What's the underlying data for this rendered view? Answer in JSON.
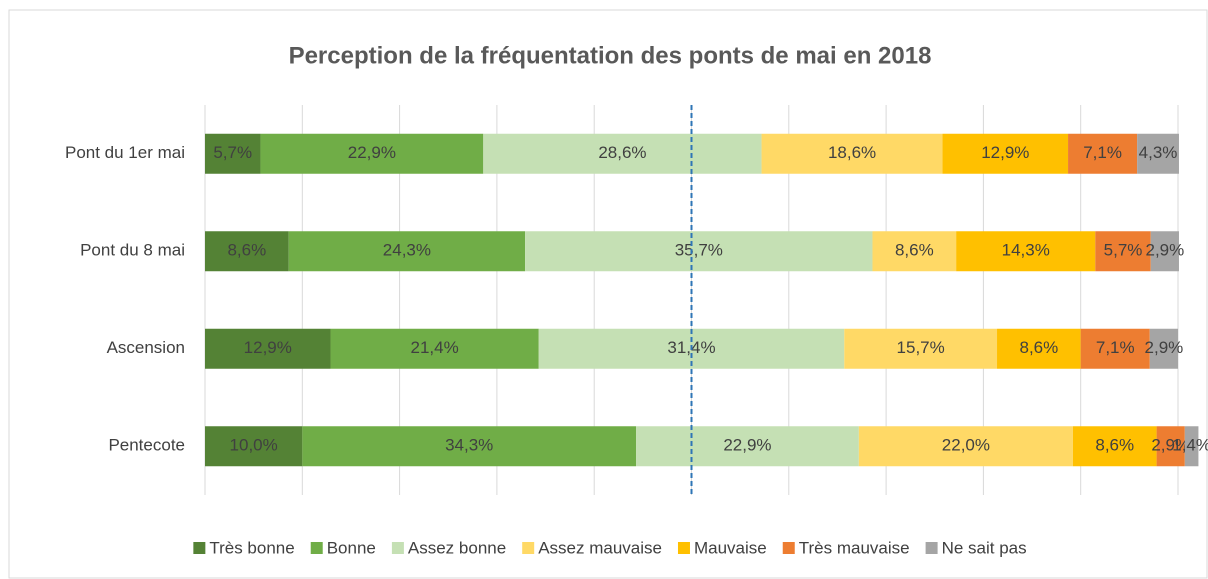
{
  "chart_data": {
    "type": "stacked-bar-horizontal",
    "title": "Perception de la fréquentation des ponts de mai en 2018",
    "categories": [
      "Pont du 1er mai",
      "Pont du 8 mai",
      "Ascension",
      "Pentecote"
    ],
    "series": [
      {
        "name": "Très bonne",
        "color": "#548235",
        "values": [
          5.7,
          8.6,
          12.9,
          10.0
        ],
        "value_labels": [
          "5,7%",
          "8,6%",
          "12,9%",
          "10,0%"
        ]
      },
      {
        "name": "Bonne",
        "color": "#70ad47",
        "values": [
          22.9,
          24.3,
          21.4,
          34.3
        ],
        "value_labels": [
          "22,9%",
          "24,3%",
          "21,4%",
          "34,3%"
        ]
      },
      {
        "name": "Assez bonne",
        "color": "#c5e0b4",
        "values": [
          28.6,
          35.7,
          31.4,
          22.9
        ],
        "value_labels": [
          "28,6%",
          "35,7%",
          "31,4%",
          "22,9%"
        ]
      },
      {
        "name": "Assez mauvaise",
        "color": "#ffd966",
        "values": [
          18.6,
          8.6,
          15.7,
          22.0
        ],
        "value_labels": [
          "18,6%",
          "8,6%",
          "15,7%",
          "22,0%"
        ]
      },
      {
        "name": "Mauvaise",
        "color": "#ffc000",
        "values": [
          12.9,
          14.3,
          8.6,
          8.6
        ],
        "value_labels": [
          "12,9%",
          "14,3%",
          "8,6%",
          "8,6%"
        ]
      },
      {
        "name": "Très mauvaise",
        "color": "#ed7d31",
        "values": [
          7.1,
          5.7,
          7.1,
          2.9
        ],
        "value_labels": [
          "7,1%",
          "5,7%",
          "7,1%",
          "2,9%"
        ]
      },
      {
        "name": "Ne sait pas",
        "color": "#a5a5a5",
        "values": [
          4.3,
          2.9,
          2.9,
          1.4
        ],
        "value_labels": [
          "4,3%",
          "2,9%",
          "2,9%",
          "1,4%"
        ]
      }
    ],
    "xlim": [
      0,
      100
    ],
    "xticks": [
      0,
      10,
      20,
      30,
      40,
      50,
      60,
      70,
      80,
      90,
      100
    ],
    "grid": true,
    "reference_line": 50,
    "legend": "bottom"
  }
}
